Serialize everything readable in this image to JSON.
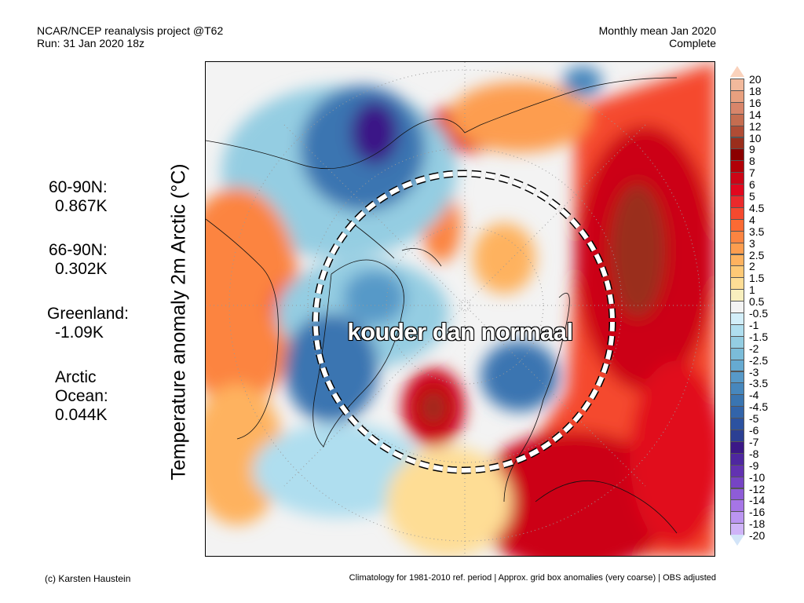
{
  "header": {
    "left_line1": "NCAR/NCEP reanalysis project @T62",
    "left_line2": "Run: 31 Jan 2020 18z",
    "right_line1": "Monthly mean Jan 2020",
    "right_line2": "Complete"
  },
  "ylabel": "Temperature anomaly 2m Arctic (°C)",
  "stats": [
    {
      "label": "60-90N:",
      "value": "0.867K"
    },
    {
      "label": "66-90N:",
      "value": "0.302K"
    },
    {
      "label": "Greenland:",
      "value": "-1.09K"
    },
    {
      "label_line1": "Arctic",
      "label_line2": "Ocean:",
      "value": "0.044K"
    }
  ],
  "map": {
    "overlay_text": "kouder dan normaal",
    "projection": "north polar stereographic",
    "variable": "2m temperature anomaly",
    "annotation": "dashed circle marking Arctic region (~66N)"
  },
  "colorbar": {
    "unit": "°C",
    "labels": [
      "20",
      "18",
      "16",
      "14",
      "12",
      "10",
      "9",
      "8",
      "7",
      "6",
      "5",
      "4.5",
      "4",
      "3.5",
      "3",
      "2.5",
      "2",
      "1.5",
      "1",
      "0.5",
      "-0.5",
      "-1",
      "-1.5",
      "-2",
      "-2.5",
      "-3",
      "-3.5",
      "-4",
      "-4.5",
      "-5",
      "-6",
      "-7",
      "-8",
      "-9",
      "-10",
      "-12",
      "-14",
      "-16",
      "-18",
      "-20"
    ],
    "colors": [
      "#f2b99c",
      "#e8a07f",
      "#d8856a",
      "#c56d50",
      "#b04c35",
      "#9a2e1c",
      "#8b0000",
      "#b20008",
      "#cc0517",
      "#e1071e",
      "#ea2a2c",
      "#f5492e",
      "#fb6a33",
      "#fc8441",
      "#fd9d4f",
      "#feb25f",
      "#fec976",
      "#fedd95",
      "#f8efbe",
      "#f3f3f3",
      "#d2eef9",
      "#afdeef",
      "#94cde2",
      "#7bbcd9",
      "#66aad1",
      "#5799c8",
      "#4787bd",
      "#3a75b1",
      "#3264aa",
      "#2c52a0",
      "#2b3f93",
      "#3b1887",
      "#4e27a0",
      "#6232b1",
      "#7644c4",
      "#8e5cd7",
      "#a675e6",
      "#bb95f1",
      "#cfb4f8"
    ],
    "top_arrow_color": "#fad2bc",
    "bottom_arrow_color": "#d2e4f8"
  },
  "footer": {
    "left": "(c) Karsten Haustein",
    "right": "Climatology for 1981-2010 ref. period | Approx. grid box anomalies (very coarse) | OBS adjusted"
  }
}
